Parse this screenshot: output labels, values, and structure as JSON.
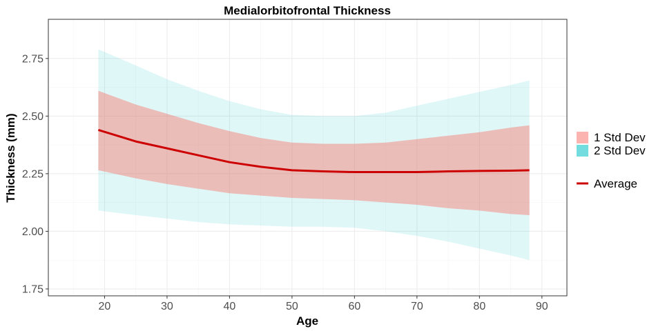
{
  "chart_data": {
    "type": "area",
    "title": "Medialorbitofrontal Thickness",
    "xlabel": "Age",
    "ylabel": "Thickness (mm)",
    "xlim": [
      11,
      94
    ],
    "ylim": [
      1.72,
      2.92
    ],
    "x_ticks": [
      20,
      30,
      40,
      50,
      60,
      70,
      80,
      90
    ],
    "y_ticks": [
      1.75,
      2.0,
      2.25,
      2.5,
      2.75
    ],
    "y_tick_labels": [
      "1.75",
      "2.00",
      "2.25",
      "2.50",
      "2.75"
    ],
    "grid": true,
    "legend_position": "right",
    "colors": {
      "sd1": "#f8766d",
      "sd2": "#00bfc4",
      "average": "#cc0000"
    },
    "x": [
      19,
      25,
      30,
      35,
      40,
      45,
      50,
      55,
      60,
      65,
      70,
      75,
      80,
      85,
      88
    ],
    "series": [
      {
        "name": "Average",
        "values": [
          2.44,
          2.39,
          2.36,
          2.33,
          2.3,
          2.28,
          2.265,
          2.26,
          2.257,
          2.257,
          2.257,
          2.26,
          2.262,
          2.263,
          2.265
        ]
      },
      {
        "name": "1 Std Dev",
        "lower": [
          2.265,
          2.23,
          2.205,
          2.185,
          2.165,
          2.155,
          2.145,
          2.14,
          2.135,
          2.125,
          2.115,
          2.1,
          2.09,
          2.075,
          2.07
        ],
        "upper": [
          2.61,
          2.55,
          2.51,
          2.47,
          2.435,
          2.405,
          2.385,
          2.38,
          2.38,
          2.385,
          2.4,
          2.415,
          2.43,
          2.45,
          2.46
        ]
      },
      {
        "name": "2 Std Dev",
        "lower": [
          2.09,
          2.07,
          2.055,
          2.04,
          2.03,
          2.025,
          2.02,
          2.02,
          2.015,
          2.0,
          1.98,
          1.955,
          1.925,
          1.895,
          1.875
        ],
        "upper": [
          2.79,
          2.72,
          2.66,
          2.61,
          2.565,
          2.53,
          2.505,
          2.5,
          2.5,
          2.515,
          2.545,
          2.575,
          2.605,
          2.635,
          2.655
        ]
      }
    ],
    "legend": [
      {
        "label": "1 Std Dev",
        "kind": "fill",
        "color": "#f8766d"
      },
      {
        "label": "2 Std Dev",
        "kind": "fill",
        "color": "#00bfc4"
      },
      {
        "label": "Average",
        "kind": "line",
        "color": "#cc0000"
      }
    ]
  }
}
